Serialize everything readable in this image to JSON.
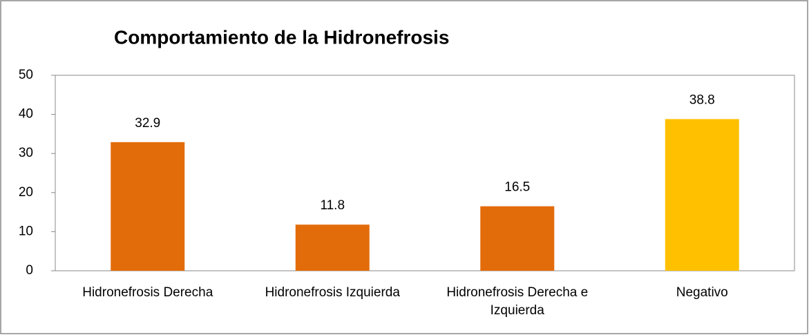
{
  "chart_data": {
    "type": "bar",
    "title": "Comportamiento de la Hidronefrosis",
    "categories": [
      "Hidronefrosis Derecha",
      "Hidronefrosis Izquierda",
      "Hidronefrosis Derecha e Izquierda",
      "Negativo"
    ],
    "values": [
      32.9,
      11.8,
      16.5,
      38.8
    ],
    "colors": [
      "#e36c0a",
      "#e36c0a",
      "#e36c0a",
      "#ffc000"
    ],
    "ylim": [
      0,
      50
    ],
    "yticks": [
      0,
      10,
      20,
      30,
      40,
      50
    ],
    "grid": false
  }
}
